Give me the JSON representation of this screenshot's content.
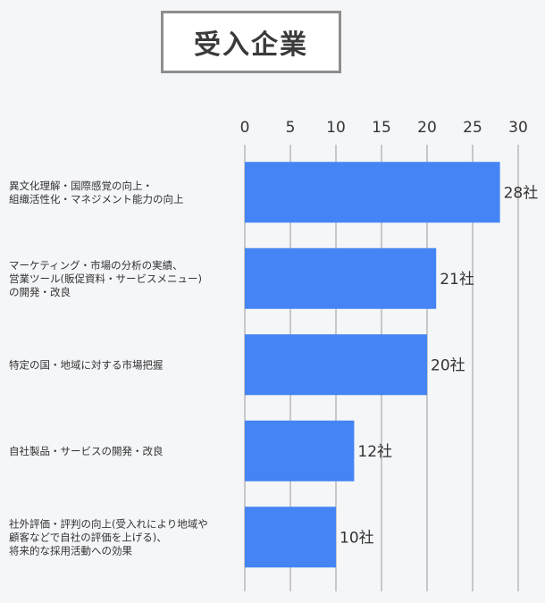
{
  "chart_data": {
    "type": "bar",
    "orientation": "horizontal",
    "title": "受入企業",
    "xlim": [
      0,
      30
    ],
    "xticks": [
      0,
      5,
      10,
      15,
      20,
      25,
      30
    ],
    "grid": true,
    "categories": [
      [
        "異文化理解・国際感覚の向上・",
        "組織活性化・マネジメント能力の向上"
      ],
      [
        "マーケティング・市場の分析の実績、",
        "営業ツール(販促資料・サービスメニュー)",
        "の開発・改良"
      ],
      [
        "特定の国・地域に対する市場把握"
      ],
      [
        "自社製品・サービスの開発・改良"
      ],
      [
        "社外評価・評判の向上(受入れにより地域や",
        "顧客などで自社の評価を上げる)、",
        "将来的な採用活動への効果"
      ]
    ],
    "values": [
      28,
      21,
      20,
      12,
      10
    ],
    "value_labels": [
      "28社",
      "21社",
      "20社",
      "12社",
      "10社"
    ],
    "bar_color": "#4584f4"
  }
}
